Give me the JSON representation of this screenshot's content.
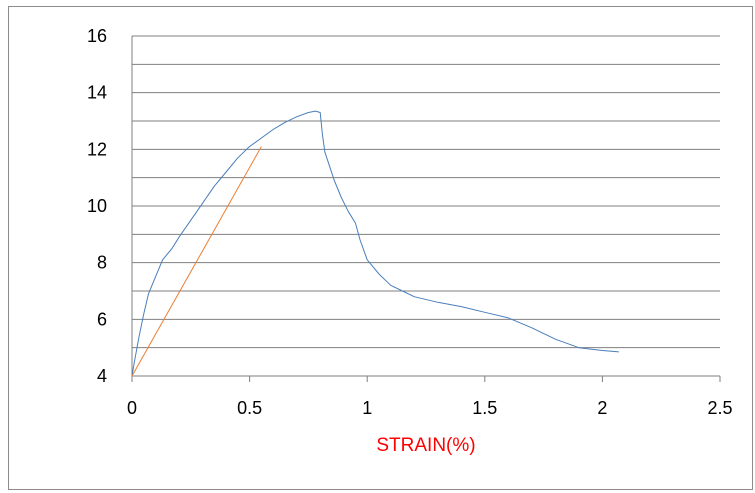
{
  "chart_data": {
    "type": "line",
    "xlabel": "STRAIN(%)",
    "ylabel": "",
    "title": "",
    "xlim": [
      0,
      2.5
    ],
    "ylim": [
      4,
      16
    ],
    "x_ticks": [
      "0",
      "0.5",
      "1",
      "1.5",
      "2",
      "2.5"
    ],
    "y_tick_labels": [
      "4",
      "6",
      "8",
      "10",
      "12",
      "14",
      "16"
    ],
    "y_gridlines": [
      4,
      5,
      6,
      7,
      8,
      9,
      10,
      11,
      12,
      13,
      14,
      15,
      16
    ],
    "grid": "horizontal",
    "legend": "none",
    "series": [
      {
        "color": "#4a7ebb",
        "points": [
          [
            0.0,
            4.0
          ],
          [
            0.01,
            4.5
          ],
          [
            0.03,
            5.4
          ],
          [
            0.05,
            6.2
          ],
          [
            0.07,
            6.9
          ],
          [
            0.1,
            7.5
          ],
          [
            0.13,
            8.1
          ],
          [
            0.17,
            8.5
          ],
          [
            0.2,
            8.9
          ],
          [
            0.25,
            9.5
          ],
          [
            0.3,
            10.1
          ],
          [
            0.35,
            10.7
          ],
          [
            0.4,
            11.2
          ],
          [
            0.45,
            11.7
          ],
          [
            0.5,
            12.1
          ],
          [
            0.55,
            12.4
          ],
          [
            0.6,
            12.7
          ],
          [
            0.65,
            12.95
          ],
          [
            0.7,
            13.15
          ],
          [
            0.75,
            13.3
          ],
          [
            0.78,
            13.35
          ],
          [
            0.8,
            13.3
          ],
          [
            0.81,
            12.5
          ],
          [
            0.82,
            11.9
          ],
          [
            0.84,
            11.4
          ],
          [
            0.86,
            10.9
          ],
          [
            0.89,
            10.3
          ],
          [
            0.92,
            9.8
          ],
          [
            0.95,
            9.4
          ],
          [
            0.97,
            8.8
          ],
          [
            1.0,
            8.1
          ],
          [
            1.05,
            7.6
          ],
          [
            1.1,
            7.2
          ],
          [
            1.15,
            7.0
          ],
          [
            1.2,
            6.8
          ],
          [
            1.3,
            6.6
          ],
          [
            1.4,
            6.45
          ],
          [
            1.5,
            6.25
          ],
          [
            1.6,
            6.05
          ],
          [
            1.7,
            5.7
          ],
          [
            1.8,
            5.3
          ],
          [
            1.9,
            5.0
          ],
          [
            2.0,
            4.9
          ],
          [
            2.07,
            4.85
          ]
        ]
      },
      {
        "color": "#ed7d31",
        "points": [
          [
            0.0,
            4.0
          ],
          [
            0.55,
            12.1
          ]
        ]
      }
    ]
  },
  "colors": {
    "xlabel": "#ff0000",
    "gridline": "#7f7f7f",
    "frame": "#8c8c8c"
  }
}
